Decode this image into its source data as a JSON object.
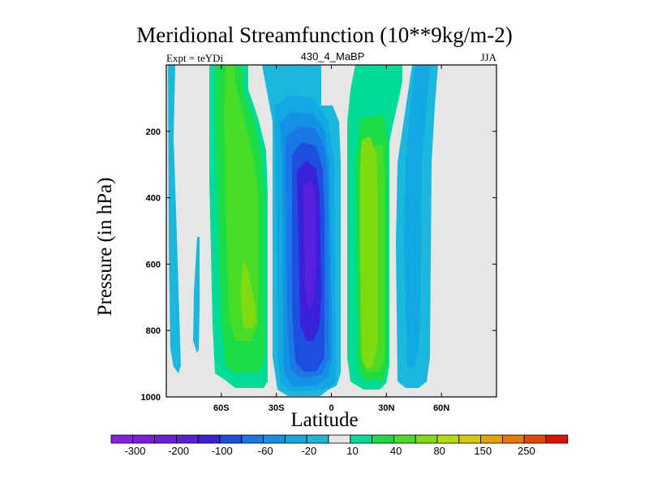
{
  "chart_data": {
    "type": "contour",
    "title": "Meridional Streamfunction (10**9kg/m-2)",
    "subtitle_left": "Expt = teYDi",
    "subtitle_center": "430_4_MaBP",
    "subtitle_right": "JJA",
    "xlabel": "Latitude",
    "ylabel": "Pressure (in hPa)",
    "xlim": [
      -90,
      90
    ],
    "ylim": [
      1000,
      0
    ],
    "x_ticks": [
      {
        "value": -60,
        "label": "60S"
      },
      {
        "value": -30,
        "label": "30S"
      },
      {
        "value": 0,
        "label": "0"
      },
      {
        "value": 30,
        "label": "30N"
      },
      {
        "value": 60,
        "label": "60N"
      }
    ],
    "y_ticks": [
      {
        "value": 200,
        "label": "200"
      },
      {
        "value": 400,
        "label": "400"
      },
      {
        "value": 600,
        "label": "600"
      },
      {
        "value": 800,
        "label": "800"
      },
      {
        "value": 1000,
        "label": "1000"
      }
    ],
    "colorbar": {
      "levels": [
        -350,
        -300,
        -250,
        -200,
        -150,
        -100,
        -80,
        -60,
        -40,
        -20,
        -10,
        10,
        20,
        40,
        60,
        80,
        100,
        150,
        200,
        250,
        300
      ],
      "labels": [
        "-300",
        "-200",
        "-100",
        "-60",
        "-20",
        "10",
        "40",
        "80",
        "150",
        "250"
      ],
      "label_after_box": [
        1,
        3,
        5,
        7,
        9,
        11,
        13,
        15,
        17,
        19
      ],
      "colors": [
        "#8a1ee8",
        "#7a1ee6",
        "#6a1fe0",
        "#5820dc",
        "#3a20d8",
        "#1c4ee0",
        "#1a78e6",
        "#1292e6",
        "#12a8e2",
        "#1ab8dc",
        "#e6e6e6",
        "#00dc96",
        "#1cdc46",
        "#46dc28",
        "#7edc10",
        "#b4dc00",
        "#dcc800",
        "#e6a000",
        "#e67800",
        "#e64800",
        "#e61000"
      ]
    },
    "features": [
      {
        "name": "southern-polar-cell",
        "sign": "positive",
        "level": 20,
        "lat_range": [
          -86,
          -77
        ],
        "p_range": [
          0,
          960
        ]
      },
      {
        "name": "southern-polar-cell-filament",
        "sign": "positive",
        "level": 20,
        "lat_range": [
          -77,
          -74
        ],
        "p_range": [
          520,
          880
        ]
      },
      {
        "name": "southern-ferrel-cell",
        "sign": "positive",
        "level": 60,
        "lat_range": [
          -70,
          -40
        ],
        "p_range": [
          0,
          980
        ],
        "max_level": 80
      },
      {
        "name": "southern-hadley-cell",
        "sign": "negative",
        "level": -300,
        "lat_range": [
          -33,
          4
        ],
        "p_range": [
          80,
          990
        ],
        "min_level": -300
      },
      {
        "name": "northern-hadley-cell",
        "sign": "positive",
        "level": 60,
        "lat_range": [
          10,
          33
        ],
        "p_range": [
          0,
          980
        ],
        "max_level": 80
      },
      {
        "name": "northern-ferrel-cell",
        "sign": "positive",
        "level": 20,
        "lat_range": [
          42,
          64
        ],
        "p_range": [
          0,
          960
        ]
      }
    ]
  }
}
